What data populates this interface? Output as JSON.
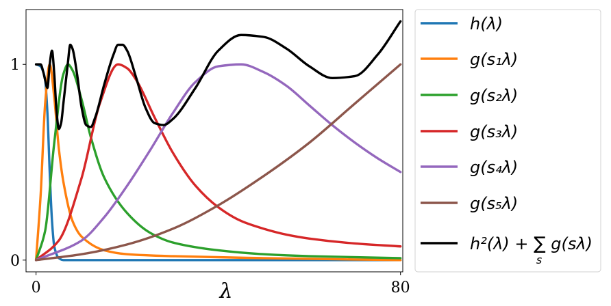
{
  "chart_data": {
    "type": "line",
    "title": "",
    "xlabel": "λ",
    "ylabel": "",
    "xlim": [
      -2.2,
      80.5
    ],
    "ylim": [
      -0.06,
      1.28
    ],
    "xticks": [
      0,
      80
    ],
    "xtick_labels": [
      "0",
      "80"
    ],
    "yticks": [
      0,
      1
    ],
    "ytick_labels": [
      "0",
      "1"
    ],
    "grid": false,
    "legend_position": "right-outside",
    "series": [
      {
        "name": "h(λ)",
        "color": "#1f77b4",
        "x": [
          0,
          1,
          1.6,
          2,
          2.5,
          3,
          3.5,
          4,
          5,
          6,
          8,
          80
        ],
        "y": [
          1.0,
          0.99,
          0.96,
          0.92,
          0.75,
          0.45,
          0.2,
          0.07,
          0.01,
          0.0,
          0.0,
          0.0
        ]
      },
      {
        "name": "g(s₁λ)",
        "color": "#ff7f0e",
        "x": [
          0,
          1,
          2,
          3,
          4,
          5,
          6,
          8,
          10,
          15,
          20,
          30,
          50,
          80
        ],
        "y": [
          0.0,
          0.33,
          0.8,
          1.0,
          0.83,
          0.57,
          0.4,
          0.2,
          0.12,
          0.05,
          0.03,
          0.02,
          0.01,
          0.0
        ]
      },
      {
        "name": "g(s₂λ)",
        "color": "#2ca02c",
        "x": [
          0,
          2,
          4,
          6,
          7,
          8,
          10,
          12,
          15,
          20,
          25,
          30,
          40,
          50,
          60,
          80
        ],
        "y": [
          0.0,
          0.15,
          0.6,
          0.95,
          1.0,
          0.97,
          0.82,
          0.63,
          0.42,
          0.24,
          0.14,
          0.09,
          0.05,
          0.03,
          0.02,
          0.01
        ]
      },
      {
        "name": "g(s₃λ)",
        "color": "#d62728",
        "x": [
          0,
          5,
          10,
          14,
          18,
          20,
          22,
          26,
          30,
          35,
          40,
          45,
          50,
          55,
          60,
          70,
          80
        ],
        "y": [
          0.0,
          0.1,
          0.42,
          0.8,
          1.0,
          0.98,
          0.92,
          0.73,
          0.55,
          0.38,
          0.27,
          0.2,
          0.16,
          0.13,
          0.11,
          0.085,
          0.07
        ]
      },
      {
        "name": "g(s₄λ)",
        "color": "#9467bd",
        "x": [
          0,
          10,
          15,
          20,
          25,
          30,
          35,
          40,
          45,
          50,
          55,
          60,
          65,
          70,
          75,
          80
        ],
        "y": [
          0.0,
          0.1,
          0.22,
          0.38,
          0.56,
          0.75,
          0.91,
          0.99,
          1.0,
          0.96,
          0.89,
          0.79,
          0.69,
          0.6,
          0.52,
          0.45
        ]
      },
      {
        "name": "g(s₅λ)",
        "color": "#8c564b",
        "x": [
          0,
          10,
          20,
          30,
          40,
          50,
          60,
          70,
          80
        ],
        "y": [
          0.0,
          0.03,
          0.08,
          0.16,
          0.28,
          0.43,
          0.6,
          0.8,
          1.0
        ]
      },
      {
        "name": "h²(λ) + ∑ g(sλ)",
        "color": "#000000",
        "x": [
          0,
          1,
          1.6,
          2,
          2.5,
          3,
          3.5,
          4,
          4.5,
          5,
          5.5,
          6,
          7,
          7.5,
          8,
          9,
          10,
          11,
          12,
          13,
          15,
          17,
          18,
          19,
          20,
          22,
          24,
          26,
          28,
          30,
          35,
          40,
          45,
          50,
          55,
          60,
          65,
          70,
          75,
          80
        ],
        "y": [
          1.0,
          1.0,
          0.96,
          0.92,
          0.88,
          1.0,
          1.07,
          0.95,
          0.76,
          0.67,
          0.7,
          0.8,
          1.01,
          1.1,
          1.08,
          0.95,
          0.78,
          0.69,
          0.68,
          0.73,
          0.9,
          1.05,
          1.1,
          1.1,
          1.07,
          0.93,
          0.78,
          0.7,
          0.69,
          0.72,
          0.88,
          1.07,
          1.15,
          1.14,
          1.08,
          0.99,
          0.93,
          0.94,
          1.05,
          1.22
        ]
      }
    ]
  }
}
